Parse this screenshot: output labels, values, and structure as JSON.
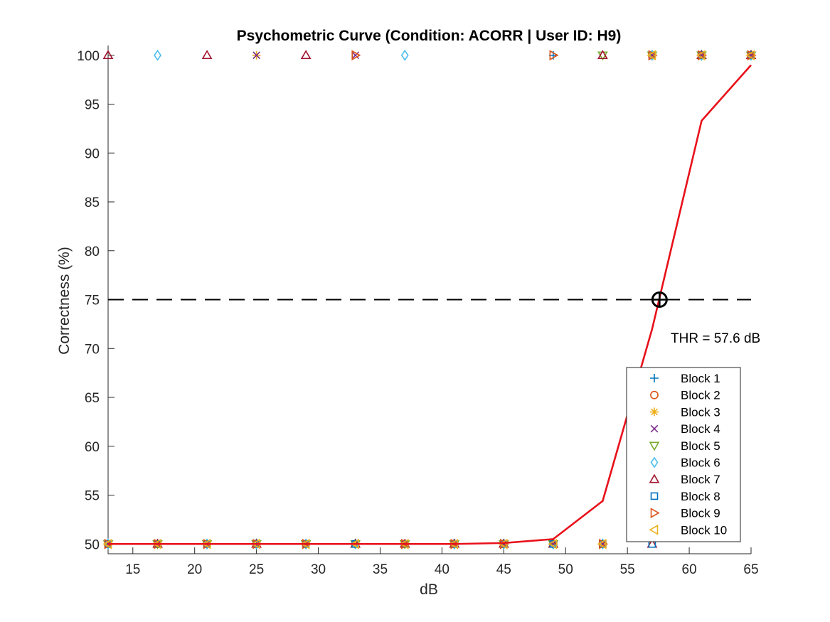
{
  "chart_data": {
    "type": "scatter",
    "title": "Psychometric Curve (Condition: ACORR | User ID: H9)",
    "xlabel": "dB",
    "ylabel": "Correctness (%)",
    "xlim": [
      13,
      65
    ],
    "ylim": [
      49,
      101
    ],
    "xticks": [
      15,
      20,
      25,
      30,
      35,
      40,
      45,
      50,
      55,
      60,
      65
    ],
    "yticks": [
      50,
      55,
      60,
      65,
      70,
      75,
      80,
      85,
      90,
      95,
      100
    ],
    "grid": false,
    "legend_location": "bottom-right",
    "annotation": "THR = 57.6 dB",
    "threshold": {
      "x": 57.6,
      "y": 75
    },
    "reference_line_y": 75,
    "fit_curve": {
      "color": "#e8101a",
      "x": [
        13,
        17,
        21,
        25,
        29,
        33,
        37,
        41,
        45,
        49,
        53,
        57,
        61,
        65
      ],
      "y": [
        50,
        50,
        50,
        50,
        50,
        50,
        50,
        50,
        50.1,
        50.5,
        54.4,
        72,
        93.3,
        99
      ]
    },
    "series": [
      {
        "name": "Block 1",
        "marker": "plus",
        "color": "#0072bd",
        "x": [
          13,
          17,
          21,
          25,
          29,
          33,
          37,
          41,
          45,
          49,
          53,
          57,
          61,
          65
        ],
        "y": [
          50,
          50,
          50,
          50,
          50,
          50,
          50,
          50,
          50,
          100,
          50,
          100,
          100,
          100
        ]
      },
      {
        "name": "Block 2",
        "marker": "circle",
        "color": "#d95319",
        "x": [
          13,
          17,
          21,
          25,
          29,
          33,
          37,
          41,
          45,
          49,
          53,
          57,
          61,
          65
        ],
        "y": [
          50,
          50,
          50,
          50,
          50,
          50,
          50,
          50,
          50,
          50,
          50,
          100,
          100,
          100
        ]
      },
      {
        "name": "Block 3",
        "marker": "asterisk",
        "color": "#edb120",
        "x": [
          13,
          17,
          21,
          25,
          29,
          33,
          37,
          41,
          45,
          49,
          53,
          57,
          61,
          65
        ],
        "y": [
          50,
          50,
          50,
          100,
          50,
          50,
          50,
          50,
          50,
          50,
          50,
          100,
          100,
          100
        ]
      },
      {
        "name": "Block 4",
        "marker": "x",
        "color": "#7e2f8e",
        "x": [
          13,
          17,
          21,
          25,
          29,
          33,
          37,
          41,
          45,
          49,
          53,
          57,
          61,
          65
        ],
        "y": [
          50,
          50,
          50,
          100,
          50,
          100,
          50,
          50,
          50,
          50,
          50,
          100,
          100,
          100
        ]
      },
      {
        "name": "Block 5",
        "marker": "triangle-down",
        "color": "#77ac30",
        "x": [
          13,
          17,
          21,
          25,
          29,
          33,
          37,
          41,
          45,
          49,
          53,
          57,
          61,
          65
        ],
        "y": [
          50,
          50,
          50,
          50,
          50,
          50,
          50,
          50,
          50,
          50,
          100,
          100,
          100,
          100
        ]
      },
      {
        "name": "Block 6",
        "marker": "diamond",
        "color": "#4dbeee",
        "x": [
          13,
          17,
          21,
          25,
          29,
          33,
          37,
          41,
          45,
          49,
          53,
          57,
          61,
          65
        ],
        "y": [
          50,
          100,
          50,
          50,
          50,
          50,
          100,
          50,
          50,
          50,
          50,
          100,
          100,
          100
        ]
      },
      {
        "name": "Block 7",
        "marker": "triangle-up",
        "color": "#a2142f",
        "x": [
          13,
          17,
          21,
          25,
          29,
          33,
          37,
          41,
          45,
          49,
          53,
          57,
          61,
          65
        ],
        "y": [
          100,
          50,
          100,
          50,
          100,
          50,
          50,
          50,
          50,
          50,
          100,
          50,
          100,
          100
        ]
      },
      {
        "name": "Block 8",
        "marker": "square",
        "color": "#0072bd",
        "x": [
          13,
          17,
          21,
          25,
          29,
          33,
          37,
          41,
          45,
          49,
          53,
          57,
          61,
          65
        ],
        "y": [
          50,
          50,
          50,
          50,
          50,
          50,
          50,
          50,
          50,
          50,
          50,
          50,
          100,
          100
        ]
      },
      {
        "name": "Block 9",
        "marker": "triangle-right",
        "color": "#d95319",
        "x": [
          13,
          17,
          21,
          25,
          29,
          33,
          37,
          41,
          45,
          49,
          53,
          57,
          61,
          65
        ],
        "y": [
          50,
          50,
          50,
          50,
          50,
          100,
          50,
          50,
          50,
          100,
          50,
          100,
          100,
          100
        ]
      },
      {
        "name": "Block 10",
        "marker": "triangle-left",
        "color": "#edb120",
        "x": [
          13,
          17,
          21,
          25,
          29,
          33,
          37,
          41,
          45,
          49,
          53,
          57,
          61,
          65
        ],
        "y": [
          50,
          50,
          50,
          50,
          50,
          50,
          50,
          50,
          50,
          50,
          50,
          100,
          100,
          100
        ]
      }
    ]
  }
}
